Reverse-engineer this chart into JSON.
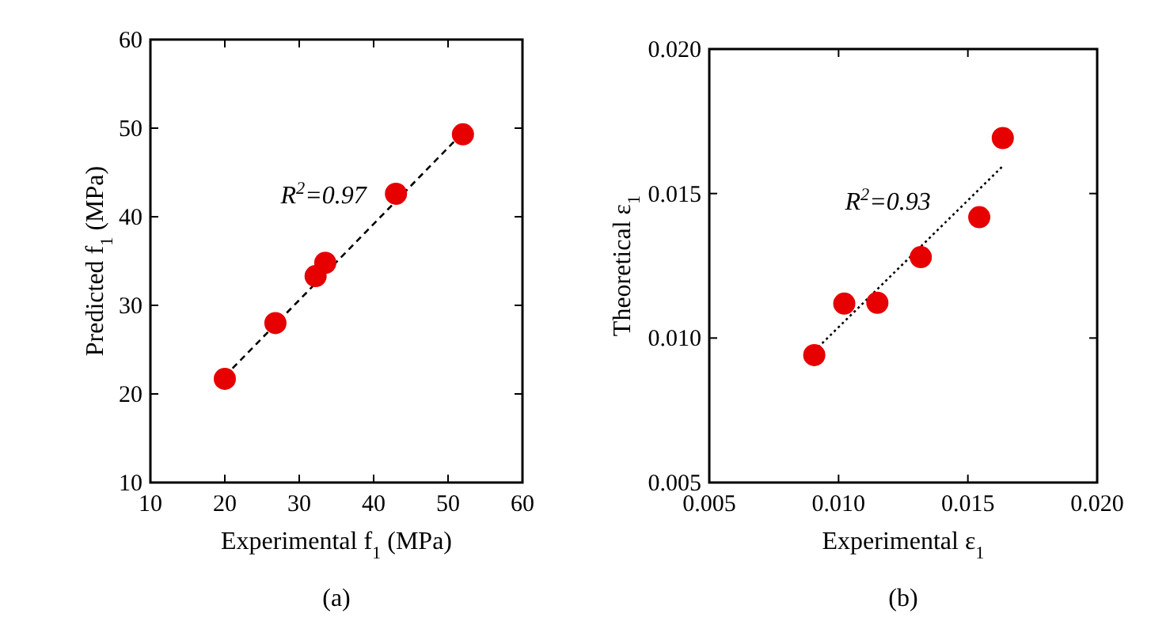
{
  "chart_data": [
    {
      "type": "scatter",
      "title": "(a)",
      "xlabel": "Experimental f$_{1}$ (MPa)",
      "ylabel": "Predicted f$_{1}$ (MPa)",
      "xlim": [
        10,
        60
      ],
      "ylim": [
        10,
        60
      ],
      "xticks": [
        10,
        20,
        30,
        40,
        50,
        60
      ],
      "yticks": [
        10,
        20,
        30,
        40,
        50,
        60
      ],
      "grid": false,
      "annotations": [
        "R$^{2}$=0.97"
      ],
      "series": [
        {
          "color": "#e60000",
          "marker": "circle",
          "x": [
            20,
            26.8,
            32.2,
            33.5,
            43,
            52
          ],
          "values": [
            21.7,
            28,
            33.3,
            34.8,
            42.6,
            49.3
          ]
        },
        {
          "type": "line",
          "color": "#000000",
          "line_style": "dashed",
          "marker": "none",
          "x": [
            20,
            52
          ],
          "values": [
            22,
            49.5
          ]
        }
      ]
    },
    {
      "type": "scatter",
      "title": "(b)",
      "xlabel": "Experimental ε$_{1}$",
      "ylabel": "Theoretical ε$_{1}$",
      "xlim": [
        0.005,
        0.02
      ],
      "ylim": [
        0.005,
        0.02
      ],
      "xticks": [
        {
          "value": 0.005,
          "label": "0.005"
        },
        {
          "value": 0.01,
          "label": "0.010"
        },
        {
          "value": 0.015,
          "label": "0.015"
        },
        {
          "value": 0.02,
          "label": "0.020"
        }
      ],
      "yticks": [
        {
          "value": 0.005,
          "label": "0.005"
        },
        {
          "value": 0.01,
          "label": "0.010"
        },
        {
          "value": 0.015,
          "label": "0.015"
        },
        {
          "value": 0.02,
          "label": "0.020"
        }
      ],
      "grid": false,
      "annotations": [
        "R$^{2}$=0.93"
      ],
      "series": [
        {
          "color": "#e60000",
          "marker": "circle",
          "x": [
            0.00906,
            0.01022,
            0.0115,
            0.01318,
            0.01544,
            0.01635
          ],
          "values": [
            0.00941,
            0.01119,
            0.01122,
            0.0128,
            0.01418,
            0.01692
          ]
        },
        {
          "type": "line",
          "color": "#000000",
          "line_style": "dotted",
          "marker": "none",
          "x": [
            0.00906,
            0.01635
          ],
          "values": [
            0.00955,
            0.01595
          ]
        }
      ]
    }
  ]
}
